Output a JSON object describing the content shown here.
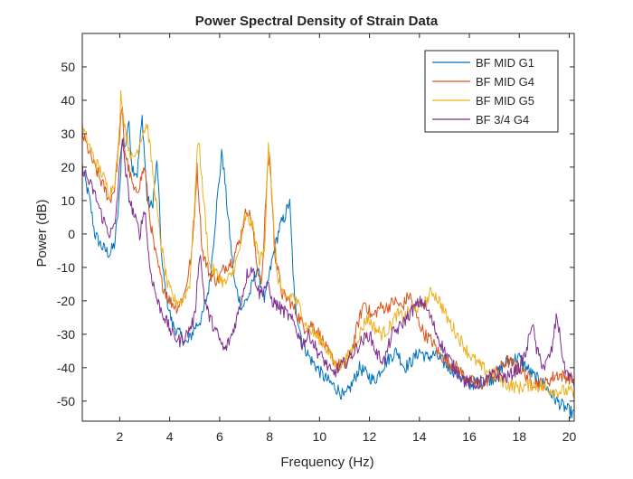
{
  "chart_data": {
    "type": "line",
    "title": "Power Spectral Density of Strain Data",
    "xlabel": "Frequency (Hz)",
    "ylabel": "Power (dB)",
    "xlim": [
      0.5,
      20.2
    ],
    "ylim": [
      -56,
      60
    ],
    "xticks": [
      2,
      4,
      6,
      8,
      10,
      12,
      14,
      16,
      18,
      20
    ],
    "yticks": [
      -50,
      -40,
      -30,
      -20,
      -10,
      0,
      10,
      20,
      30,
      40,
      50
    ],
    "grid": false,
    "legend_position": "top-right",
    "series": [
      {
        "name": "BF MID G1",
        "color": "#0072BD",
        "x": [
          0.5,
          0.8,
          1.0,
          1.3,
          1.6,
          1.8,
          2.0,
          2.1,
          2.2,
          2.35,
          2.5,
          2.7,
          2.9,
          3.1,
          3.3,
          3.5,
          3.7,
          3.9,
          4.1,
          4.4,
          4.7,
          5.0,
          5.3,
          5.6,
          5.9,
          6.1,
          6.3,
          6.6,
          6.9,
          7.2,
          7.5,
          7.8,
          8.1,
          8.4,
          8.6,
          8.8,
          9.0,
          9.3,
          9.6,
          9.9,
          10.2,
          10.5,
          10.8,
          11.0,
          11.3,
          11.6,
          11.9,
          12.2,
          12.5,
          12.8,
          13.1,
          13.4,
          13.7,
          14.0,
          14.3,
          14.6,
          14.9,
          15.2,
          15.6,
          16.0,
          16.5,
          17.0,
          17.5,
          18.0,
          18.5,
          19.0,
          19.5,
          20.0,
          20.2
        ],
        "y": [
          20,
          10,
          0,
          -4,
          -6,
          -3,
          12,
          30,
          25,
          34,
          20,
          18,
          35,
          10,
          8,
          22,
          -10,
          -20,
          -27,
          -30,
          -33,
          -28,
          -25,
          -15,
          10,
          25,
          8,
          -15,
          -22,
          -18,
          -10,
          -20,
          -8,
          2,
          5,
          10,
          -20,
          -32,
          -37,
          -40,
          -43,
          -45,
          -47,
          -49,
          -45,
          -40,
          -42,
          -44,
          -40,
          -37,
          -35,
          -40,
          -38,
          -35,
          -37,
          -36,
          -38,
          -40,
          -42,
          -45,
          -44,
          -43,
          -38,
          -37,
          -42,
          -45,
          -50,
          -53,
          -54
        ]
      },
      {
        "name": "BF MID G4",
        "color": "#D95319",
        "x": [
          0.5,
          0.8,
          1.0,
          1.3,
          1.6,
          1.8,
          2.0,
          2.1,
          2.2,
          2.4,
          2.6,
          2.8,
          2.9,
          3.0,
          3.2,
          3.4,
          3.7,
          4.0,
          4.3,
          4.6,
          4.9,
          5.1,
          5.3,
          5.6,
          5.9,
          6.2,
          6.5,
          6.8,
          7.1,
          7.3,
          7.5,
          7.7,
          7.9,
          8.0,
          8.2,
          8.5,
          8.8,
          9.1,
          9.4,
          9.7,
          10.0,
          10.3,
          10.6,
          10.9,
          11.2,
          11.5,
          11.8,
          12.1,
          12.4,
          12.7,
          13.0,
          13.3,
          13.6,
          13.9,
          14.2,
          14.5,
          14.8,
          15.1,
          15.5,
          16.0,
          16.5,
          17.0,
          17.5,
          18.0,
          18.5,
          19.0,
          19.5,
          20.0,
          20.2
        ],
        "y": [
          30,
          24,
          20,
          15,
          10,
          14,
          30,
          38,
          25,
          18,
          12,
          15,
          18,
          20,
          5,
          -5,
          -15,
          -20,
          -22,
          -18,
          -5,
          20,
          -5,
          -12,
          -14,
          -10,
          -8,
          -2,
          8,
          3,
          -10,
          -14,
          18,
          25,
          -5,
          -18,
          -20,
          -24,
          -28,
          -27,
          -30,
          -35,
          -38,
          -40,
          -38,
          -28,
          -20,
          -25,
          -22,
          -22,
          -20,
          -22,
          -18,
          -25,
          -30,
          -32,
          -36,
          -38,
          -40,
          -44,
          -45,
          -42,
          -38,
          -40,
          -44,
          -45,
          -42,
          -43,
          -44
        ]
      },
      {
        "name": "BF MID G5",
        "color": "#EDB120",
        "x": [
          0.5,
          0.8,
          1.0,
          1.3,
          1.6,
          1.8,
          1.95,
          2.05,
          2.15,
          2.3,
          2.5,
          2.7,
          2.9,
          3.1,
          3.3,
          3.6,
          3.9,
          4.2,
          4.5,
          4.8,
          5.0,
          5.15,
          5.3,
          5.6,
          5.9,
          6.2,
          6.5,
          6.8,
          7.0,
          7.3,
          7.6,
          7.8,
          7.95,
          8.1,
          8.3,
          8.6,
          8.9,
          9.2,
          9.5,
          9.8,
          10.1,
          10.4,
          10.7,
          11.0,
          11.3,
          11.6,
          11.9,
          12.2,
          12.5,
          12.8,
          13.1,
          13.4,
          13.7,
          14.0,
          14.3,
          14.5,
          14.8,
          15.1,
          15.5,
          16.0,
          16.5,
          17.0,
          17.5,
          18.0,
          18.5,
          19.0,
          19.5,
          20.0,
          20.2
        ],
        "y": [
          32,
          26,
          22,
          18,
          12,
          16,
          25,
          43,
          35,
          28,
          22,
          25,
          30,
          33,
          20,
          0,
          -15,
          -20,
          -20,
          -15,
          10,
          30,
          15,
          -10,
          -12,
          -15,
          -12,
          -5,
          5,
          3,
          -8,
          -5,
          28,
          10,
          -12,
          -20,
          -18,
          -22,
          -28,
          -30,
          -32,
          -36,
          -40,
          -38,
          -35,
          -30,
          -25,
          -28,
          -30,
          -28,
          -24,
          -25,
          -22,
          -22,
          -20,
          -17,
          -20,
          -25,
          -30,
          -36,
          -40,
          -42,
          -45,
          -46,
          -45,
          -46,
          -47,
          -47,
          -48
        ]
      },
      {
        "name": "BF 3/4 G4",
        "color": "#7E2F8E",
        "x": [
          0.5,
          0.8,
          1.0,
          1.3,
          1.6,
          1.8,
          2.0,
          2.1,
          2.2,
          2.4,
          2.6,
          2.8,
          3.0,
          3.2,
          3.5,
          3.8,
          4.1,
          4.4,
          4.7,
          5.0,
          5.2,
          5.4,
          5.6,
          5.9,
          6.2,
          6.5,
          6.8,
          7.1,
          7.3,
          7.6,
          7.9,
          8.1,
          8.4,
          8.7,
          9.0,
          9.3,
          9.6,
          9.9,
          10.2,
          10.5,
          10.8,
          11.1,
          11.4,
          11.7,
          12.0,
          12.3,
          12.6,
          12.9,
          13.2,
          13.5,
          13.8,
          14.1,
          14.4,
          14.7,
          15.0,
          15.4,
          15.8,
          16.2,
          16.6,
          17.0,
          17.5,
          18.0,
          18.3,
          18.5,
          18.7,
          19.0,
          19.3,
          19.5,
          19.8,
          20.2
        ],
        "y": [
          20,
          15,
          12,
          5,
          0,
          2,
          20,
          30,
          20,
          10,
          5,
          0,
          8,
          -10,
          -20,
          -25,
          -30,
          -32,
          -30,
          -25,
          -5,
          -20,
          -25,
          -30,
          -35,
          -30,
          -22,
          -12,
          -10,
          -18,
          -15,
          -20,
          -22,
          -24,
          -27,
          -33,
          -30,
          -35,
          -38,
          -42,
          -40,
          -38,
          -35,
          -32,
          -30,
          -36,
          -38,
          -30,
          -28,
          -25,
          -22,
          -20,
          -24,
          -30,
          -35,
          -40,
          -44,
          -45,
          -44,
          -42,
          -43,
          -40,
          -35,
          -26,
          -35,
          -40,
          -35,
          -24,
          -40,
          -45
        ]
      }
    ]
  }
}
